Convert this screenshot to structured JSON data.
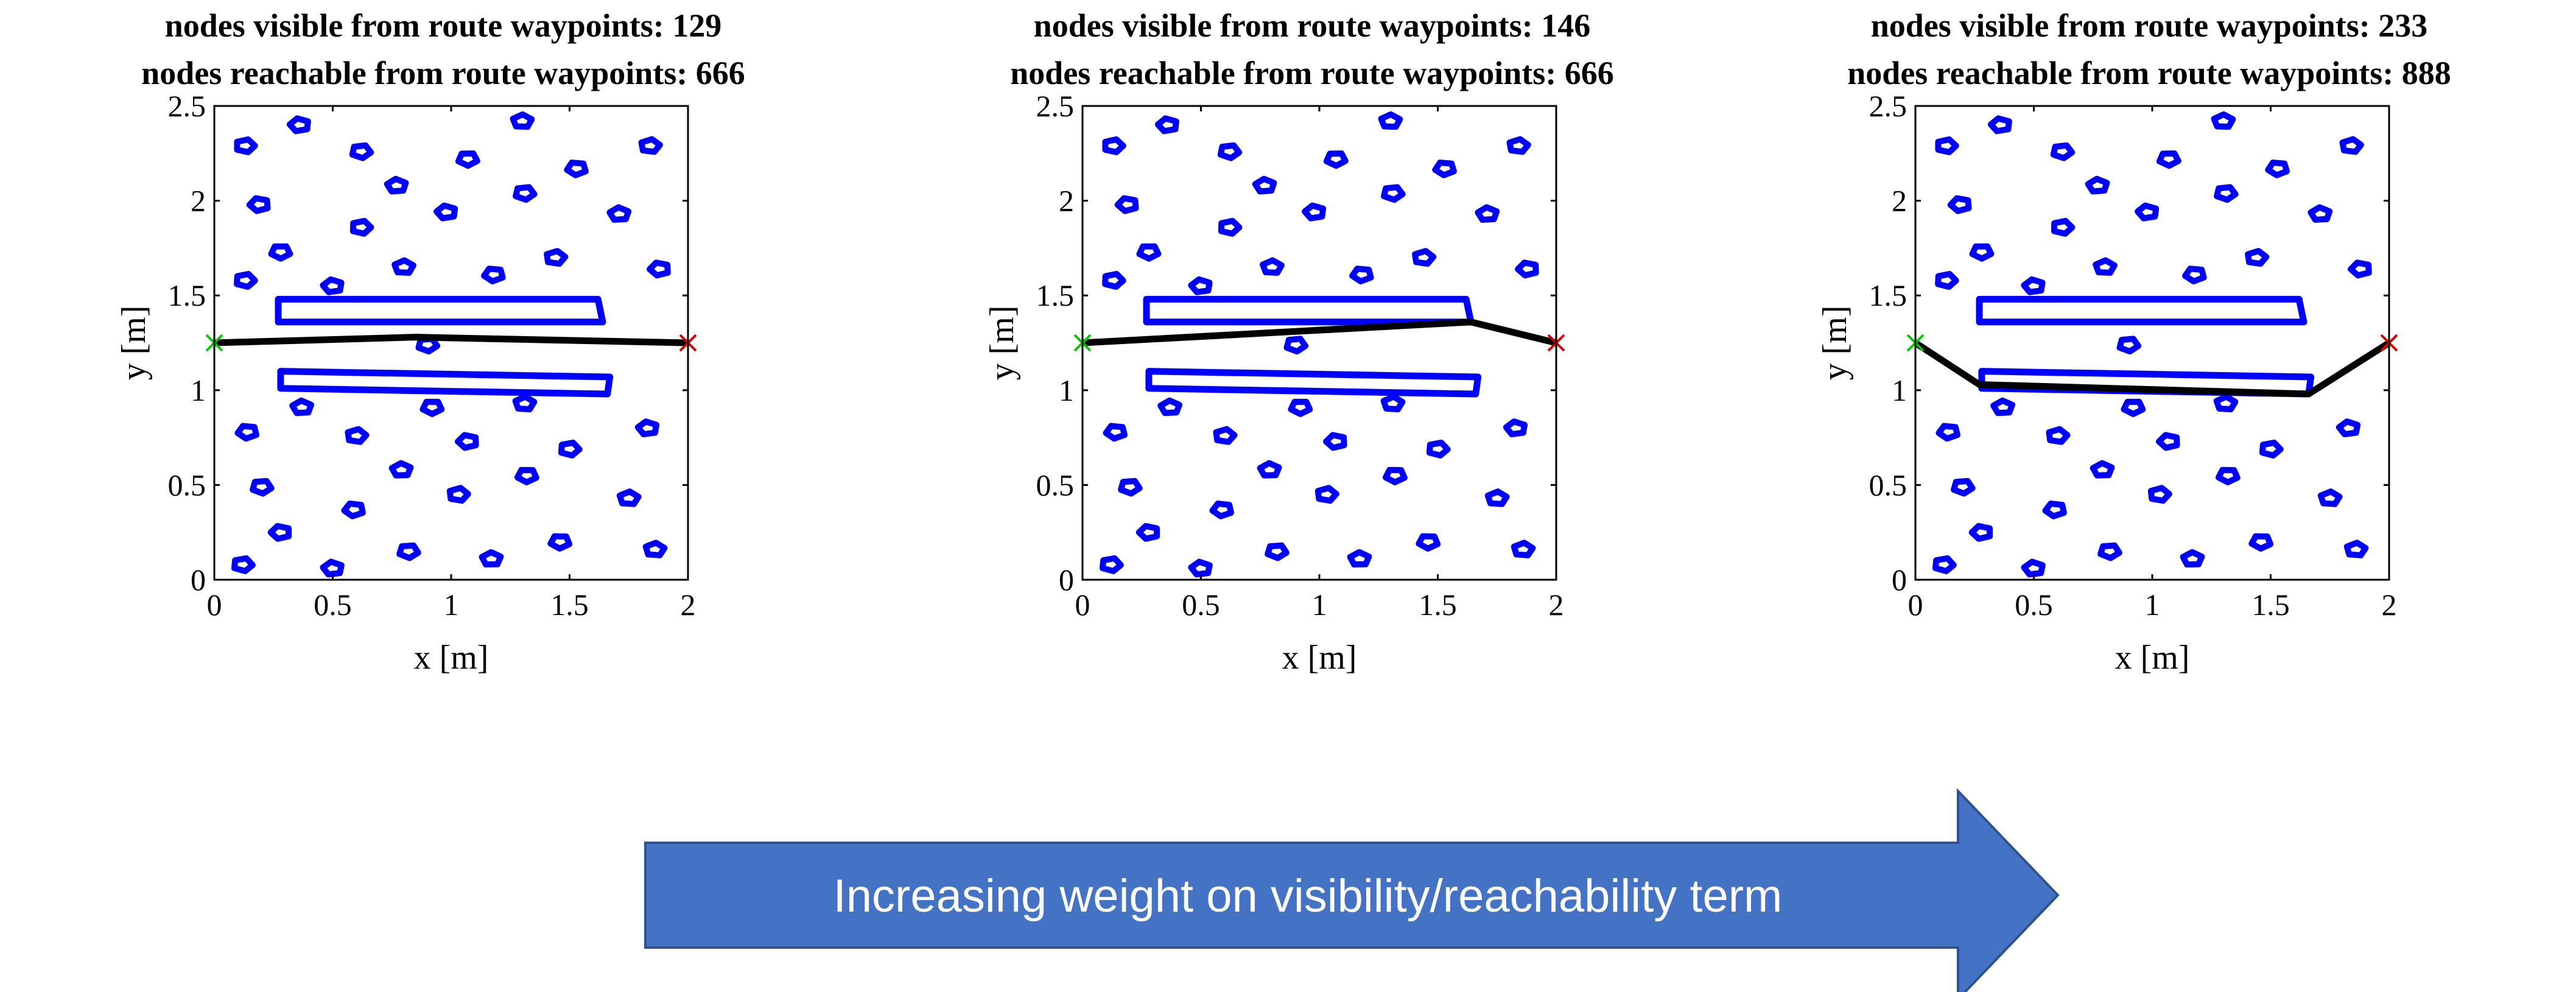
{
  "chart_data": [
    {
      "type": "line",
      "title_lines": [
        "nodes visible from route waypoints: 129",
        "nodes reachable from route waypoints: 666"
      ],
      "xlabel": "x [m]",
      "ylabel": "y [m]",
      "xlim": [
        0,
        2
      ],
      "ylim": [
        0,
        2.5
      ],
      "xticks": [
        "0",
        "0.5",
        "1",
        "1.5",
        "2"
      ],
      "yticks": [
        "0",
        "0.5",
        "1",
        "1.5",
        "2",
        "2.5"
      ],
      "obstacle_color": "#0000ff",
      "route_color": "#000000",
      "start_marker_color": "#00cc00",
      "goal_marker_color": "#dd0000",
      "route": {
        "x": [
          0,
          0.85,
          2
        ],
        "y": [
          1.25,
          1.28,
          1.25
        ]
      },
      "start": [
        0,
        1.25
      ],
      "goal": [
        2,
        1.25
      ]
    },
    {
      "type": "line",
      "title_lines": [
        "nodes visible from route waypoints: 146",
        "nodes reachable from route waypoints: 666"
      ],
      "xlabel": "x [m]",
      "ylabel": "y [m]",
      "xlim": [
        0,
        2
      ],
      "ylim": [
        0,
        2.5
      ],
      "xticks": [
        "0",
        "0.5",
        "1",
        "1.5",
        "2"
      ],
      "yticks": [
        "0",
        "0.5",
        "1",
        "1.5",
        "2",
        "2.5"
      ],
      "obstacle_color": "#0000ff",
      "route_color": "#000000",
      "start_marker_color": "#00cc00",
      "goal_marker_color": "#dd0000",
      "route": {
        "x": [
          0,
          1.64,
          2
        ],
        "y": [
          1.25,
          1.36,
          1.25
        ]
      },
      "start": [
        0,
        1.25
      ],
      "goal": [
        2,
        1.25
      ]
    },
    {
      "type": "line",
      "title_lines": [
        "nodes visible from route waypoints: 233",
        "nodes reachable from route waypoints: 888"
      ],
      "xlabel": "x [m]",
      "ylabel": "y [m]",
      "xlim": [
        0,
        2
      ],
      "ylim": [
        0,
        2.5
      ],
      "xticks": [
        "0",
        "0.5",
        "1",
        "1.5",
        "2"
      ],
      "yticks": [
        "0",
        "0.5",
        "1",
        "1.5",
        "2",
        "2.5"
      ],
      "obstacle_color": "#0000ff",
      "route_color": "#000000",
      "start_marker_color": "#00cc00",
      "goal_marker_color": "#dd0000",
      "route": {
        "x": [
          0,
          0.27,
          1.66,
          2
        ],
        "y": [
          1.25,
          1.03,
          0.98,
          1.25
        ]
      },
      "start": [
        0,
        1.25
      ],
      "goal": [
        2,
        1.25
      ]
    }
  ],
  "obstacles": {
    "bars": [
      {
        "x": [
          0.27,
          1.62,
          1.64,
          0.27
        ],
        "y": [
          1.48,
          1.48,
          1.36,
          1.36
        ]
      },
      {
        "x": [
          0.28,
          1.67,
          1.66,
          0.28
        ],
        "y": [
          1.1,
          1.07,
          0.98,
          1.01
        ]
      }
    ],
    "pillars": [
      [
        0.13,
        2.29
      ],
      [
        0.36,
        2.4
      ],
      [
        0.62,
        2.26
      ],
      [
        0.77,
        2.08
      ],
      [
        1.07,
        2.22
      ],
      [
        1.3,
        2.42
      ],
      [
        1.53,
        2.17
      ],
      [
        1.84,
        2.29
      ],
      [
        0.19,
        1.98
      ],
      [
        0.62,
        1.86
      ],
      [
        0.98,
        1.94
      ],
      [
        1.31,
        2.04
      ],
      [
        1.71,
        1.93
      ],
      [
        0.28,
        1.73
      ],
      [
        0.8,
        1.65
      ],
      [
        1.18,
        1.61
      ],
      [
        1.44,
        1.7
      ],
      [
        1.88,
        1.64
      ],
      [
        0.13,
        1.58
      ],
      [
        0.5,
        1.55
      ],
      [
        0.9,
        1.24
      ],
      [
        0.37,
        0.91
      ],
      [
        0.92,
        0.91
      ],
      [
        1.31,
        0.93
      ],
      [
        0.14,
        0.78
      ],
      [
        0.6,
        0.76
      ],
      [
        1.07,
        0.73
      ],
      [
        1.5,
        0.69
      ],
      [
        1.83,
        0.8
      ],
      [
        0.2,
        0.49
      ],
      [
        0.79,
        0.58
      ],
      [
        1.32,
        0.55
      ],
      [
        1.75,
        0.43
      ],
      [
        0.59,
        0.37
      ],
      [
        1.03,
        0.45
      ],
      [
        0.28,
        0.25
      ],
      [
        0.12,
        0.08
      ],
      [
        0.5,
        0.06
      ],
      [
        0.82,
        0.15
      ],
      [
        1.17,
        0.11
      ],
      [
        1.46,
        0.2
      ],
      [
        1.86,
        0.16
      ]
    ]
  },
  "arrow": {
    "label": "Increasing weight on visibility/reachability term",
    "color": "#4472c4"
  }
}
